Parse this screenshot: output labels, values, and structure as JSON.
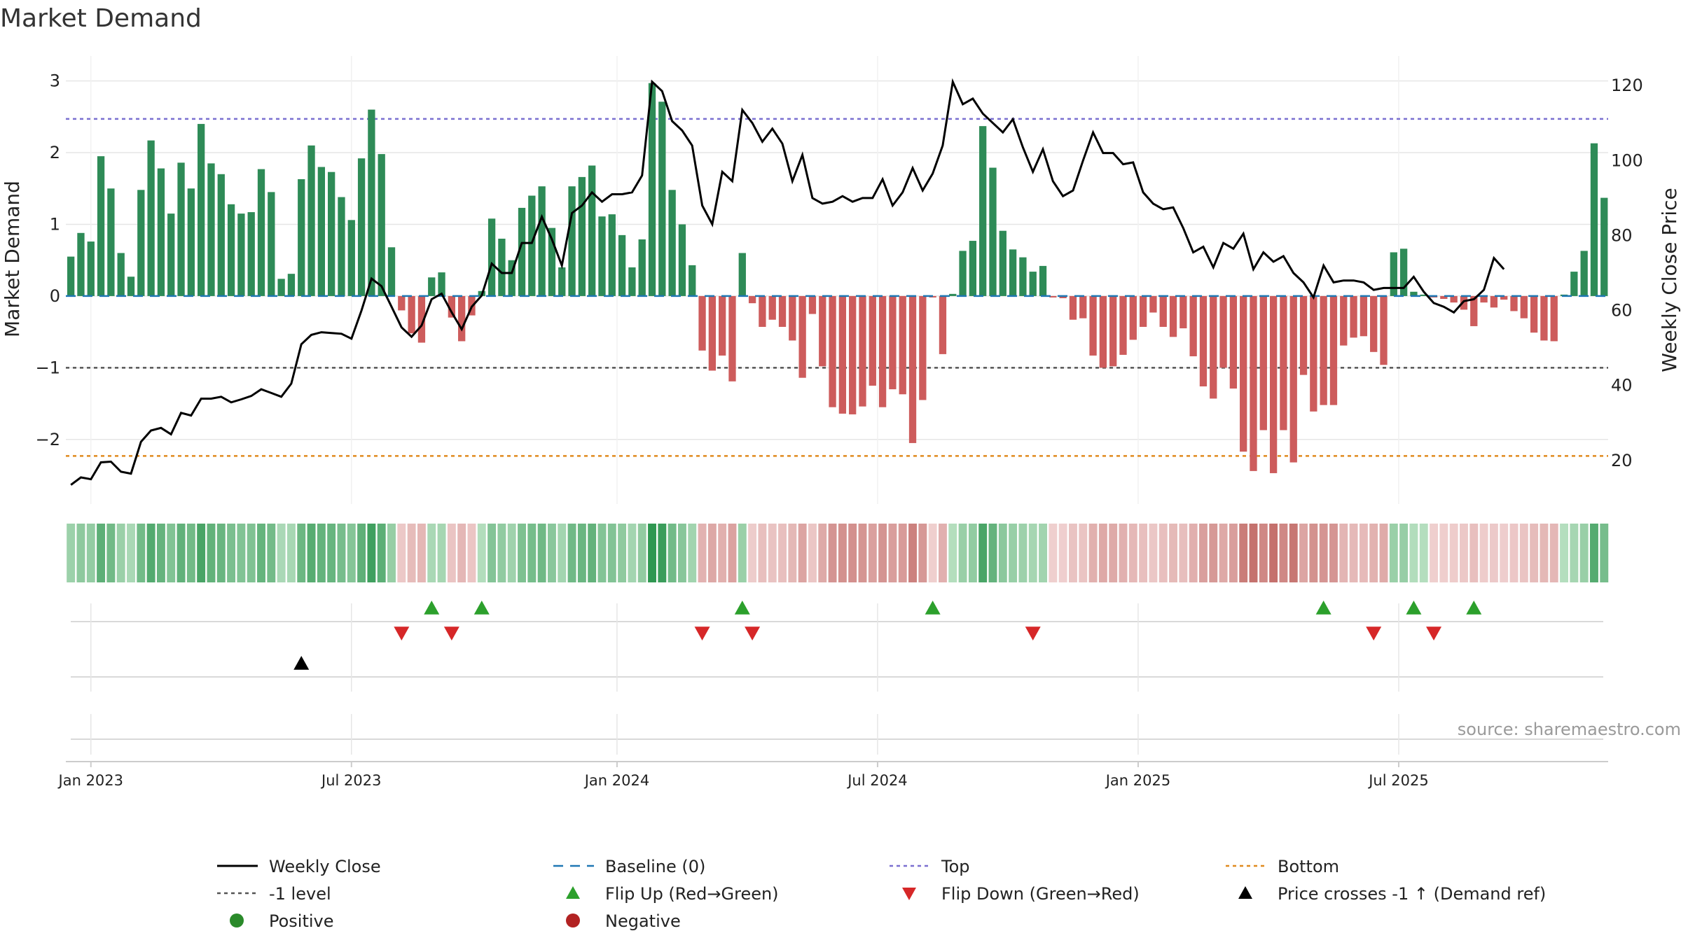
{
  "chart_data": {
    "type": "bar",
    "title": "Market Demand",
    "ylabel_left": "Market Demand",
    "ylabel_right": "Weekly Close Price",
    "source": "source: sharemaestro.com",
    "left_yticks": [
      "3",
      "2",
      "1",
      "0",
      "−1",
      "−2"
    ],
    "left_ytick_values": [
      3,
      2,
      1,
      0,
      -1,
      -2
    ],
    "right_yticks": [
      "120",
      "100",
      "80",
      "60",
      "40",
      "20"
    ],
    "right_ytick_values": [
      120,
      100,
      80,
      60,
      40,
      20
    ],
    "ylim_left": [
      -2.9,
      3.25
    ],
    "ylim_right": [
      8.4,
      126
    ],
    "xticks": [
      {
        "label": "Jan 2023",
        "week": 2
      },
      {
        "label": "Jul 2023",
        "week": 28
      },
      {
        "label": "Jan 2024",
        "week": 54.5
      },
      {
        "label": "Jul 2024",
        "week": 80.5
      },
      {
        "label": "Jan 2025",
        "week": 106.5
      },
      {
        "label": "Jul 2025",
        "week": 132.5
      }
    ],
    "reference_lines": [
      {
        "name": "Top",
        "value": 2.47,
        "color": "#7a6fd0"
      },
      {
        "name": "Baseline (0)",
        "value": 0,
        "color": "#1f77b4"
      },
      {
        "name": "-1 level",
        "value": -1,
        "color": "#555555"
      },
      {
        "name": "Bottom",
        "value": -2.23,
        "color": "#e08a1e"
      }
    ],
    "demand_values": [
      0.55,
      0.88,
      0.76,
      1.95,
      1.5,
      0.6,
      0.27,
      1.48,
      2.17,
      1.78,
      1.15,
      1.86,
      1.5,
      2.4,
      1.85,
      1.7,
      1.28,
      1.15,
      1.17,
      1.77,
      1.45,
      0.24,
      0.31,
      1.63,
      2.1,
      1.8,
      1.73,
      1.38,
      1.06,
      1.92,
      2.6,
      1.98,
      0.68,
      -0.2,
      -0.52,
      -0.65,
      0.26,
      0.33,
      -0.3,
      -0.63,
      -0.27,
      0.07,
      1.08,
      0.8,
      0.5,
      1.23,
      1.4,
      1.53,
      0.95,
      0.4,
      1.53,
      1.66,
      1.82,
      1.11,
      1.14,
      0.85,
      0.4,
      0.79,
      2.97,
      2.71,
      1.48,
      1.0,
      0.43,
      -0.76,
      -1.04,
      -0.83,
      -1.19,
      0.6,
      -0.1,
      -0.43,
      -0.33,
      -0.43,
      -0.62,
      -1.14,
      -0.25,
      -0.98,
      -1.55,
      -1.64,
      -1.65,
      -1.54,
      -1.25,
      -1.55,
      -1.3,
      -1.37,
      -2.05,
      -1.45,
      -0.02,
      -0.81,
      0.03,
      0.63,
      0.77,
      2.37,
      1.79,
      0.91,
      0.65,
      0.54,
      0.34,
      0.42,
      -0.02,
      -0.03,
      -0.33,
      -0.31,
      -0.83,
      -1.0,
      -0.98,
      -0.82,
      -0.61,
      -0.43,
      -0.23,
      -0.43,
      -0.57,
      -0.45,
      -0.84,
      -1.26,
      -1.43,
      -1.0,
      -1.29,
      -2.17,
      -2.44,
      -1.87,
      -2.47,
      -1.87,
      -2.32,
      -1.1,
      -1.61,
      -1.52,
      -1.52,
      -0.69,
      -0.58,
      -0.56,
      -0.78,
      -0.96,
      0.61,
      0.66,
      0.06,
      0.02,
      -0.02,
      -0.04,
      -0.09,
      -0.19,
      -0.42,
      -0.09,
      -0.16,
      -0.05,
      -0.21,
      -0.31,
      -0.51,
      -0.62,
      -0.63,
      0.02,
      0.34,
      0.63,
      2.13,
      1.37
    ],
    "price_values": [
      13.5,
      15.5,
      15.0,
      19.5,
      19.7,
      17.0,
      16.5,
      25.0,
      28.0,
      28.7,
      27.0,
      32.7,
      32.0,
      36.5,
      36.5,
      37.0,
      35.5,
      36.3,
      37.2,
      39.0,
      38.0,
      37.0,
      40.5,
      51.0,
      53.5,
      54.2,
      54.0,
      53.8,
      52.5,
      60.0,
      68.5,
      66.5,
      61.0,
      55.5,
      53.0,
      56.0,
      63.0,
      64.5,
      59.5,
      55.0,
      61.0,
      64.0,
      72.5,
      70.0,
      70.0,
      78.0,
      78.0,
      85.0,
      79.0,
      72.0,
      86.0,
      88.0,
      91.5,
      89.0,
      91.0,
      91.0,
      91.5,
      96.0,
      121.0,
      118.5,
      110.5,
      108.0,
      104.0,
      88.0,
      83.0,
      97.0,
      94.5,
      113.5,
      110.0,
      105.0,
      108.5,
      104.5,
      94.5,
      101.5,
      90.0,
      88.5,
      89.0,
      90.5,
      89.0,
      90.0,
      90.0,
      95.0,
      88.0,
      91.5,
      98.0,
      92.0,
      96.5,
      104.0,
      121.0,
      115.0,
      116.5,
      112.5,
      110.0,
      107.5,
      111.0,
      103.5,
      97.0,
      103.0,
      94.5,
      90.5,
      92.0,
      100.0,
      107.5,
      102.0,
      102.0,
      99.0,
      99.5,
      91.5,
      88.5,
      87.0,
      87.5,
      82.0,
      75.5,
      77.0,
      71.5,
      78.0,
      76.5,
      80.5,
      71.0,
      75.5,
      73.0,
      74.5,
      70.0,
      67.5,
      63.5,
      72.0,
      67.5,
      68.0,
      68.0,
      67.5,
      65.5,
      66.0,
      66.0,
      66.0,
      69.0,
      65.0,
      62.0,
      61.0,
      59.5,
      62.5,
      63.0,
      65.5,
      74.0,
      71.0
    ],
    "flip_up_weeks": [
      36,
      41,
      67,
      86,
      125,
      134,
      140
    ],
    "flip_down_weeks": [
      33,
      38,
      63,
      68,
      96,
      130,
      136
    ],
    "price_cross_weeks": [
      23
    ],
    "legend": [
      {
        "label": "Weekly Close",
        "marker": "line",
        "color": "#000000"
      },
      {
        "label": "Baseline (0)",
        "marker": "dash",
        "color": "#1f77b4"
      },
      {
        "label": "Top",
        "marker": "dot",
        "color": "#7a6fd0"
      },
      {
        "label": "Bottom",
        "marker": "dot",
        "color": "#e08a1e"
      },
      {
        "label": "-1 level",
        "marker": "dot",
        "color": "#555555"
      },
      {
        "label": "Flip Up (Red→Green)",
        "marker": "tri-up",
        "color": "#2ca02c"
      },
      {
        "label": "Flip Down (Green→Red)",
        "marker": "tri-down",
        "color": "#d62728"
      },
      {
        "label": "Price crosses -1 ↑ (Demand ref)",
        "marker": "tri-up",
        "color": "#000000"
      },
      {
        "label": "Positive",
        "marker": "circle",
        "color": "#2a8a2a"
      },
      {
        "label": "Negative",
        "marker": "circle",
        "color": "#b22222"
      }
    ],
    "colors": {
      "positive_bar": "#2e8b57",
      "negative_bar": "#cd5c5c",
      "price_line": "#000000",
      "grid": "#e6e6e6"
    }
  }
}
